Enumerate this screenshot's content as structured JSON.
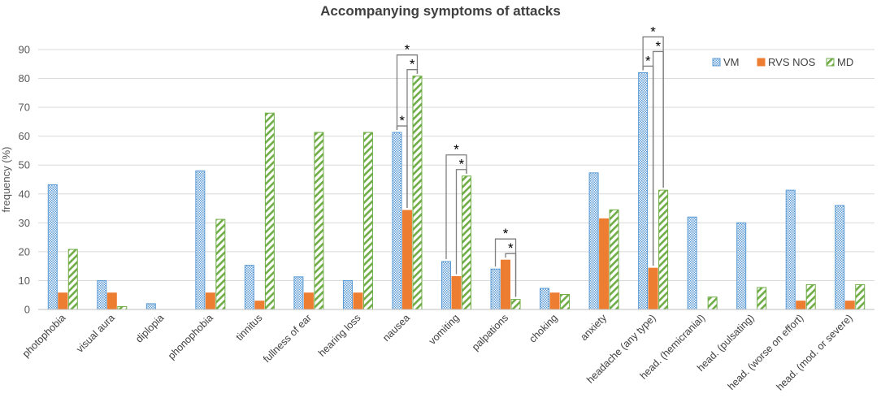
{
  "chart_data": {
    "type": "bar",
    "title": "Accompanying symptoms of attacks",
    "xlabel": "",
    "ylabel": "frequency (%)",
    "ylim": [
      0,
      90
    ],
    "yticks": [
      0,
      10,
      20,
      30,
      40,
      50,
      60,
      70,
      80,
      90
    ],
    "grid": true,
    "legend_position": "top-right",
    "categories": [
      "photophobia",
      "visual aura",
      "diplopia",
      "phonophobia",
      "tinnitus",
      "fullness of ear",
      "hearing loss",
      "nausea",
      "vomiting",
      "palpations",
      "choking",
      "anxiety",
      "headache (any type)",
      "head. (hemicranial)",
      "head. (pulsating)",
      "head. (worse on effort)",
      "head. (mod. or severe)"
    ],
    "series": [
      {
        "name": "VM",
        "color": "#5b9bd5",
        "pattern": "crosshatch",
        "values": [
          43.2,
          10,
          2,
          48,
          15.3,
          11.3,
          10,
          61.3,
          16.6,
          14,
          7.3,
          47.3,
          82,
          32,
          30,
          41.3,
          36
        ]
      },
      {
        "name": "RVS NOS",
        "color": "#ed7d31",
        "pattern": "solid",
        "values": [
          5.7,
          5.7,
          0,
          5.7,
          2.9,
          5.7,
          5.7,
          34.3,
          11.4,
          17.1,
          5.7,
          31.4,
          14.3,
          0,
          0,
          2.9,
          2.9
        ]
      },
      {
        "name": "MD",
        "color": "#70ad47",
        "pattern": "diagonal",
        "values": [
          20.8,
          1,
          0,
          31.2,
          68,
          61.3,
          61.3,
          80.8,
          46.2,
          3.5,
          5.2,
          34.5,
          41.3,
          4.3,
          7.6,
          8.6,
          8.6
        ]
      }
    ],
    "annotations": [
      {
        "category": "nausea",
        "from": "VM",
        "to": "RVS NOS",
        "label": "*"
      },
      {
        "category": "nausea",
        "from": "RVS NOS",
        "to": "MD",
        "label": "*"
      },
      {
        "category": "nausea",
        "from": "VM",
        "to": "MD",
        "label": "*"
      },
      {
        "category": "vomiting",
        "from": "RVS NOS",
        "to": "MD",
        "label": "*"
      },
      {
        "category": "vomiting",
        "from": "VM",
        "to": "MD",
        "label": "*"
      },
      {
        "category": "palpations",
        "from": "RVS NOS",
        "to": "MD",
        "label": "*"
      },
      {
        "category": "palpations",
        "from": "VM",
        "to": "MD",
        "label": "*"
      },
      {
        "category": "headache (any type)",
        "from": "VM",
        "to": "RVS NOS",
        "label": "*"
      },
      {
        "category": "headache (any type)",
        "from": "RVS NOS",
        "to": "MD",
        "label": "*"
      },
      {
        "category": "headache (any type)",
        "from": "VM",
        "to": "MD",
        "label": "*"
      }
    ]
  }
}
